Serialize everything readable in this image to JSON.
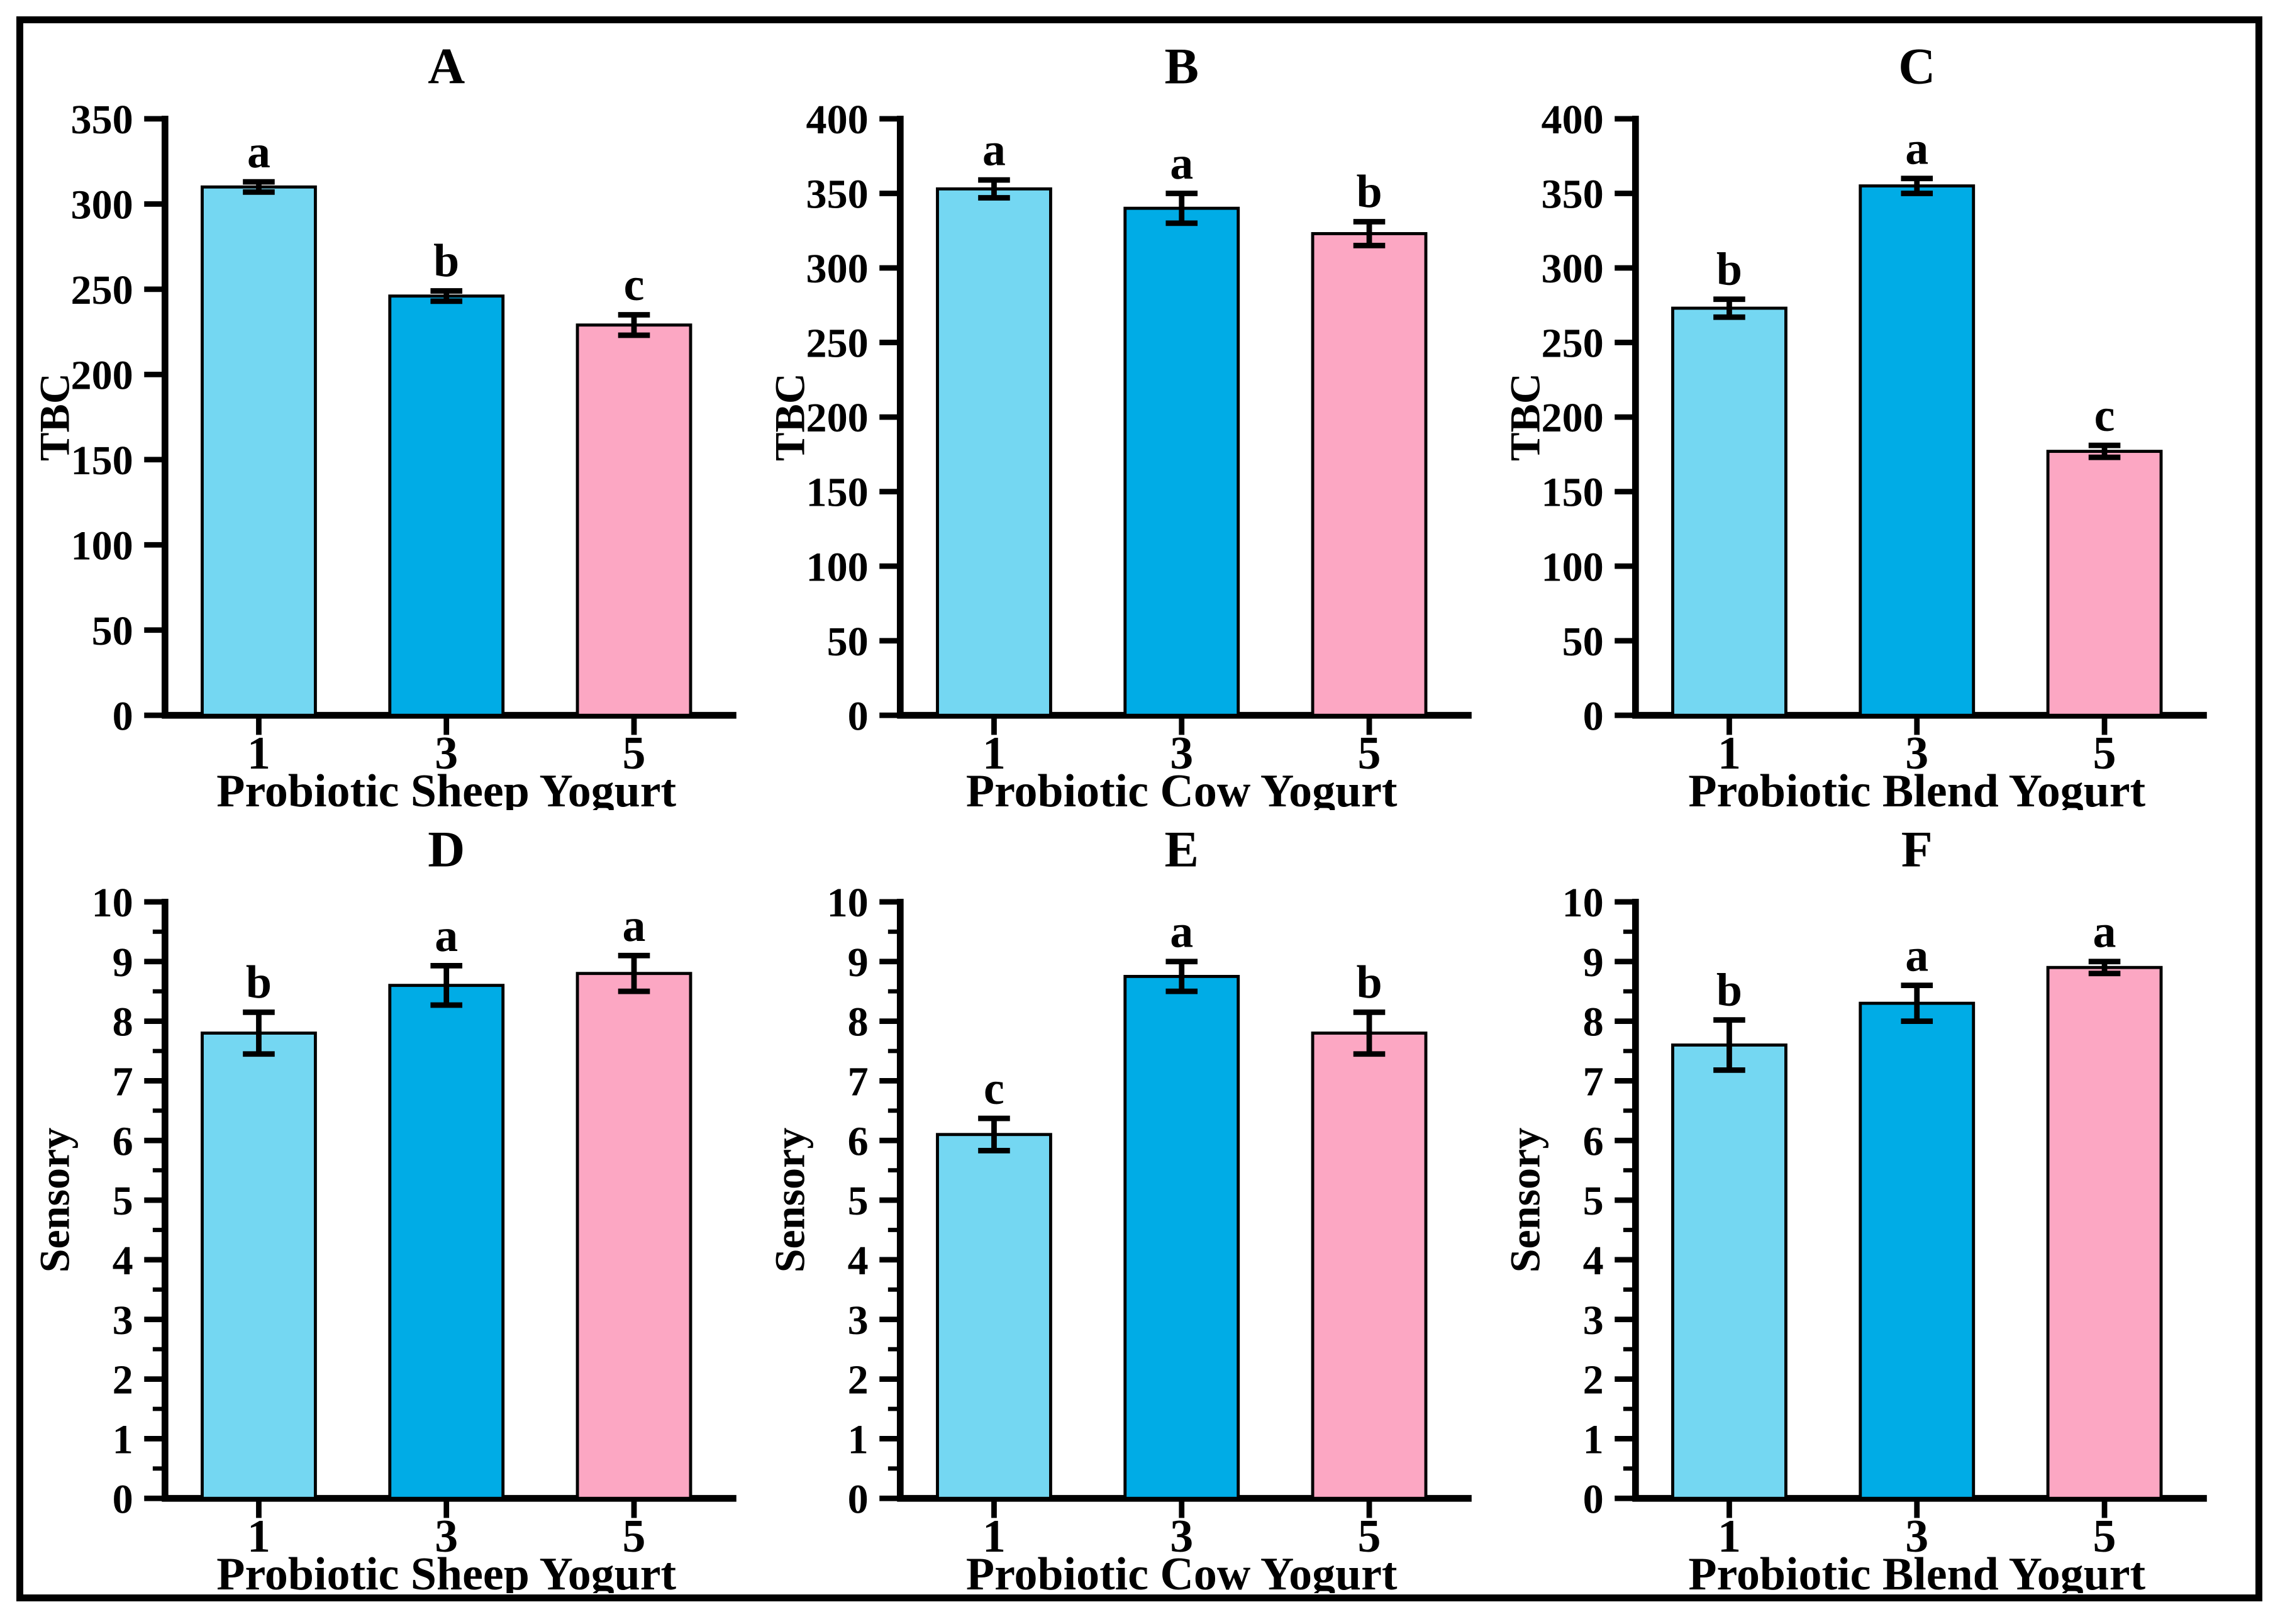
{
  "figure": {
    "description": "Six-panel bar chart figure comparing TBC and Sensory scores of probiotic yogurts at days 1, 3 and 5",
    "background": "#ffffff",
    "border_color": "#000000"
  },
  "bar_colors": [
    "#74D7F2",
    "#00ACE6",
    "#FCA7C3"
  ],
  "bar_stroke_color": "#000000",
  "axis_color": "#000000",
  "chart_data": [
    {
      "type": "bar",
      "panel_letter": "A",
      "ylabel": "TBC",
      "xlabel": "Probiotic Sheep Yogurt",
      "categories": [
        "1",
        "3",
        "5"
      ],
      "values": [
        310,
        246,
        229
      ],
      "errors": [
        3,
        3,
        6
      ],
      "sig_letters": [
        "a",
        "b",
        "c"
      ],
      "ylim": [
        0,
        350
      ],
      "ytick_step": 50,
      "minor_step": 0,
      "grid": "off",
      "legend": "none"
    },
    {
      "type": "bar",
      "panel_letter": "B",
      "ylabel": "TBC",
      "xlabel": "Probiotic Cow Yogurt",
      "categories": [
        "1",
        "3",
        "5"
      ],
      "values": [
        353,
        340,
        323
      ],
      "errors": [
        6,
        10,
        8
      ],
      "sig_letters": [
        "a",
        "a",
        "b"
      ],
      "ylim": [
        0,
        400
      ],
      "ytick_step": 50,
      "minor_step": 0,
      "grid": "off",
      "legend": "none"
    },
    {
      "type": "bar",
      "panel_letter": "C",
      "ylabel": "TBC",
      "xlabel": "Probiotic Blend Yogurt",
      "categories": [
        "1",
        "3",
        "5"
      ],
      "values": [
        273,
        355,
        177
      ],
      "errors": [
        6,
        5,
        4
      ],
      "sig_letters": [
        "b",
        "a",
        "c"
      ],
      "ylim": [
        0,
        400
      ],
      "ytick_step": 50,
      "minor_step": 0,
      "grid": "off",
      "legend": "none"
    },
    {
      "type": "bar",
      "panel_letter": "D",
      "ylabel": "Sensory",
      "xlabel": "Probiotic Sheep Yogurt",
      "categories": [
        "1",
        "3",
        "5"
      ],
      "values": [
        7.8,
        8.6,
        8.8
      ],
      "errors": [
        0.35,
        0.33,
        0.3
      ],
      "sig_letters": [
        "b",
        "a",
        "a"
      ],
      "ylim": [
        0,
        10
      ],
      "ytick_step": 1,
      "minor_step": 0.5,
      "grid": "off",
      "legend": "none"
    },
    {
      "type": "bar",
      "panel_letter": "E",
      "ylabel": "Sensory",
      "xlabel": "Probiotic Cow Yogurt",
      "categories": [
        "1",
        "3",
        "5"
      ],
      "values": [
        6.1,
        8.75,
        7.8
      ],
      "errors": [
        0.27,
        0.25,
        0.35
      ],
      "sig_letters": [
        "c",
        "a",
        "b"
      ],
      "ylim": [
        0,
        10
      ],
      "ytick_step": 1,
      "minor_step": 0.5,
      "grid": "off",
      "legend": "none"
    },
    {
      "type": "bar",
      "panel_letter": "F",
      "ylabel": "Sensory",
      "xlabel": "Probiotic Blend Yogurt",
      "categories": [
        "1",
        "3",
        "5"
      ],
      "values": [
        7.6,
        8.3,
        8.9
      ],
      "errors": [
        0.42,
        0.3,
        0.1
      ],
      "sig_letters": [
        "b",
        "a",
        "a"
      ],
      "ylim": [
        0,
        10
      ],
      "ytick_step": 1,
      "minor_step": 0.5,
      "grid": "off",
      "legend": "none"
    }
  ]
}
